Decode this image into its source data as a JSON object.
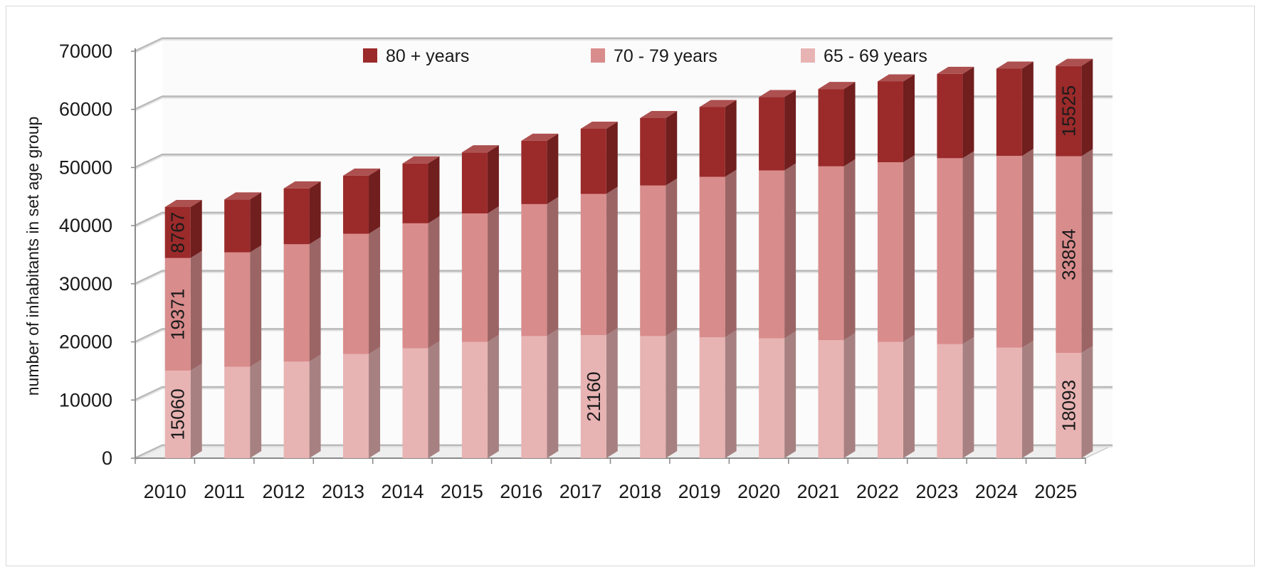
{
  "chart_data": {
    "type": "bar",
    "stacked": true,
    "three_d": true,
    "ylabel": "number of inhabitants in set age group",
    "ylim": [
      0,
      70000
    ],
    "yticks": [
      0,
      10000,
      20000,
      30000,
      40000,
      50000,
      60000,
      70000
    ],
    "grid": true,
    "legend_position": "top",
    "categories": [
      "2010",
      "2011",
      "2012",
      "2013",
      "2014",
      "2015",
      "2016",
      "2017",
      "2018",
      "2019",
      "2020",
      "2021",
      "2022",
      "2023",
      "2024",
      "2025"
    ],
    "series": [
      {
        "name": "65 - 69 years",
        "color": "#e8b3b3",
        "values": [
          15060,
          15700,
          16600,
          17900,
          18900,
          20000,
          21000,
          21160,
          21000,
          20800,
          20600,
          20300,
          20000,
          19600,
          19000,
          18093
        ]
      },
      {
        "name": "70 - 79 years",
        "color": "#d98c8c",
        "values": [
          19371,
          19700,
          20200,
          20700,
          21500,
          22100,
          22700,
          24300,
          25900,
          27600,
          28900,
          29900,
          30900,
          32000,
          33000,
          33854
        ]
      },
      {
        "name": "80 + years",
        "color": "#9b2a2a",
        "values": [
          8767,
          9100,
          9600,
          10000,
          10300,
          10500,
          10900,
          11200,
          11600,
          12000,
          12600,
          13300,
          13900,
          14500,
          15000,
          15525
        ]
      }
    ],
    "data_labels": [
      {
        "series": 0,
        "index": 0,
        "text": "15060"
      },
      {
        "series": 1,
        "index": 0,
        "text": "19371"
      },
      {
        "series": 2,
        "index": 0,
        "text": "8767"
      },
      {
        "series": 0,
        "index": 7,
        "text": "21160"
      },
      {
        "series": 0,
        "index": 15,
        "text": "18093"
      },
      {
        "series": 1,
        "index": 15,
        "text": "33854"
      },
      {
        "series": 2,
        "index": 15,
        "text": "15525"
      }
    ],
    "legend_order": [
      2,
      1,
      0
    ]
  }
}
